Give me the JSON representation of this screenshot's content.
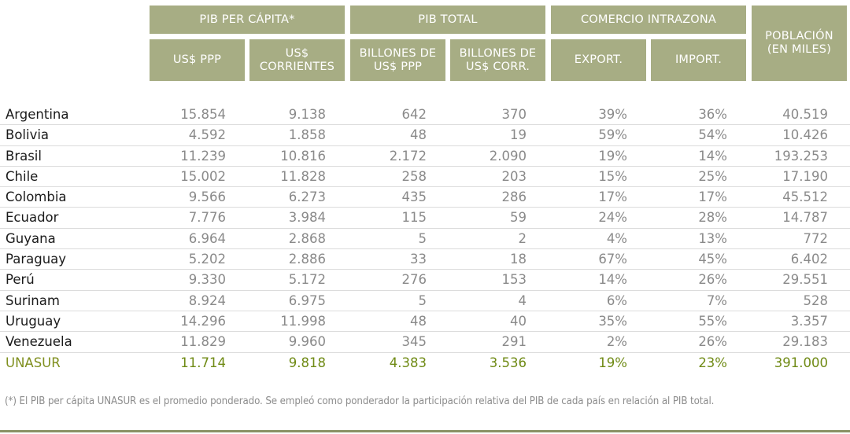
{
  "header": {
    "pib_per_capita": "PIB PER CÁPITA*",
    "pib_total": "PIB TOTAL",
    "comercio": "COMERCIO INTRAZONA",
    "poblacion": "POBLACIÓN\n(EN MILES)",
    "sub": [
      "US$ PPP",
      "US$\nCORRIENTES",
      "BILLONES DE\nUS$ PPP",
      "BILLONES DE\nUS$ CORR.",
      "EXPORT.",
      "IMPORT."
    ]
  },
  "rows": [
    {
      "name": "Argentina",
      "values": [
        "15.854",
        "9.138",
        "642",
        "370",
        "39%",
        "36%",
        "40.519"
      ]
    },
    {
      "name": "Bolivia",
      "values": [
        "4.592",
        "1.858",
        "48",
        "19",
        "59%",
        "54%",
        "10.426"
      ]
    },
    {
      "name": "Brasil",
      "values": [
        "11.239",
        "10.816",
        "2.172",
        "2.090",
        "19%",
        "14%",
        "193.253"
      ]
    },
    {
      "name": "Chile",
      "values": [
        "15.002",
        "11.828",
        "258",
        "203",
        "15%",
        "25%",
        "17.190"
      ]
    },
    {
      "name": "Colombia",
      "values": [
        "9.566",
        "6.273",
        "435",
        "286",
        "17%",
        "17%",
        "45.512"
      ]
    },
    {
      "name": "Ecuador",
      "values": [
        "7.776",
        "3.984",
        "115",
        "59",
        "24%",
        "28%",
        "14.787"
      ]
    },
    {
      "name": "Guyana",
      "values": [
        "6.964",
        "2.868",
        "5",
        "2",
        "4%",
        "13%",
        "772"
      ]
    },
    {
      "name": "Paraguay",
      "values": [
        "5.202",
        "2.886",
        "33",
        "18",
        "67%",
        "45%",
        "6.402"
      ]
    },
    {
      "name": "Perú",
      "values": [
        "9.330",
        "5.172",
        "276",
        "153",
        "14%",
        "26%",
        "29.551"
      ]
    },
    {
      "name": "Surinam",
      "values": [
        "8.924",
        "6.975",
        "5",
        "4",
        "6%",
        "7%",
        "528"
      ]
    },
    {
      "name": "Uruguay",
      "values": [
        "14.296",
        "11.998",
        "48",
        "40",
        "35%",
        "55%",
        "3.357"
      ]
    },
    {
      "name": "Venezuela",
      "values": [
        "11.829",
        "9.960",
        "345",
        "291",
        "2%",
        "26%",
        "29.183"
      ]
    }
  ],
  "total": {
    "name": "UNASUR",
    "values": [
      "11.714",
      "9.818",
      "4.383",
      "3.536",
      "19%",
      "23%",
      "391.000"
    ]
  },
  "footnote": "(*) El PIB per cápita UNASUR es el promedio ponderado. Se empleó como ponderador la participación relativa del PIB de cada país en relación al PIB total.",
  "colors": {
    "header_bg": "#a7ad84",
    "total_text": "#6f8a14",
    "line": "#8b9164"
  }
}
